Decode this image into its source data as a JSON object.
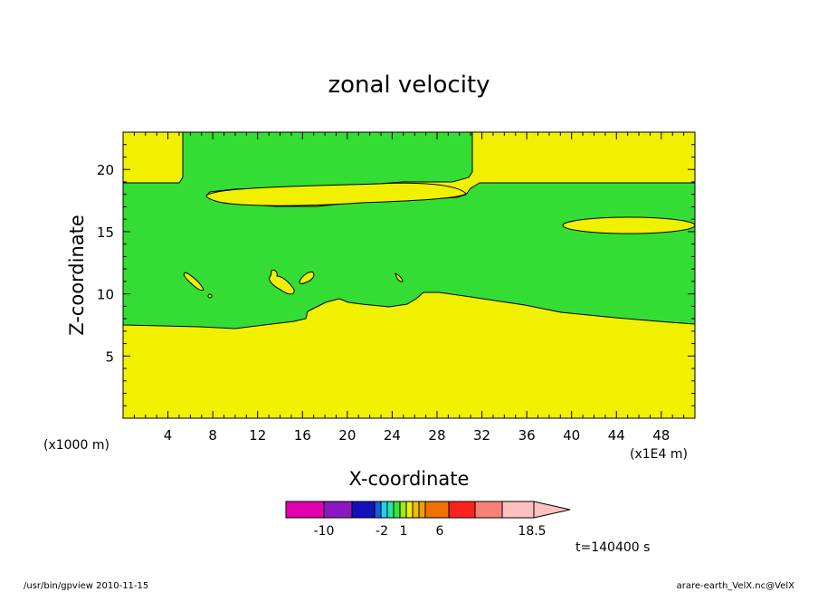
{
  "chart_data": {
    "type": "heatmap",
    "title": "zonal velocity",
    "xlabel": "X-coordinate",
    "ylabel": "Z-coordinate",
    "x_unit": "(x1E4 m)",
    "y_unit": "(x1000 m)",
    "xlim": [
      0,
      51
    ],
    "ylim": [
      0,
      23
    ],
    "x_ticks": [
      4,
      8,
      12,
      16,
      20,
      24,
      28,
      32,
      36,
      40,
      44,
      48
    ],
    "y_ticks": [
      5,
      10,
      15,
      20
    ],
    "time_label": "t=140400 s",
    "colorbar": {
      "labels": [
        "-10",
        "-2",
        "1",
        "6",
        "18.5"
      ],
      "colors": [
        "#e000b0",
        "#8a17c0",
        "#1212b8",
        "#1060e0",
        "#20d0f0",
        "#20e8a0",
        "#40e040",
        "#a0e820",
        "#f0f000",
        "#f0c000",
        "#f0a000",
        "#f07000",
        "#ff2020",
        "#f88078",
        "#ffc0c0"
      ]
    },
    "fills": {
      "background": "#f0f000",
      "main_band": "#33dd33"
    }
  },
  "footer": {
    "left": "/usr/bin/gpview   2010-11-15",
    "right": "arare-earth_VelX.nc@VelX"
  }
}
